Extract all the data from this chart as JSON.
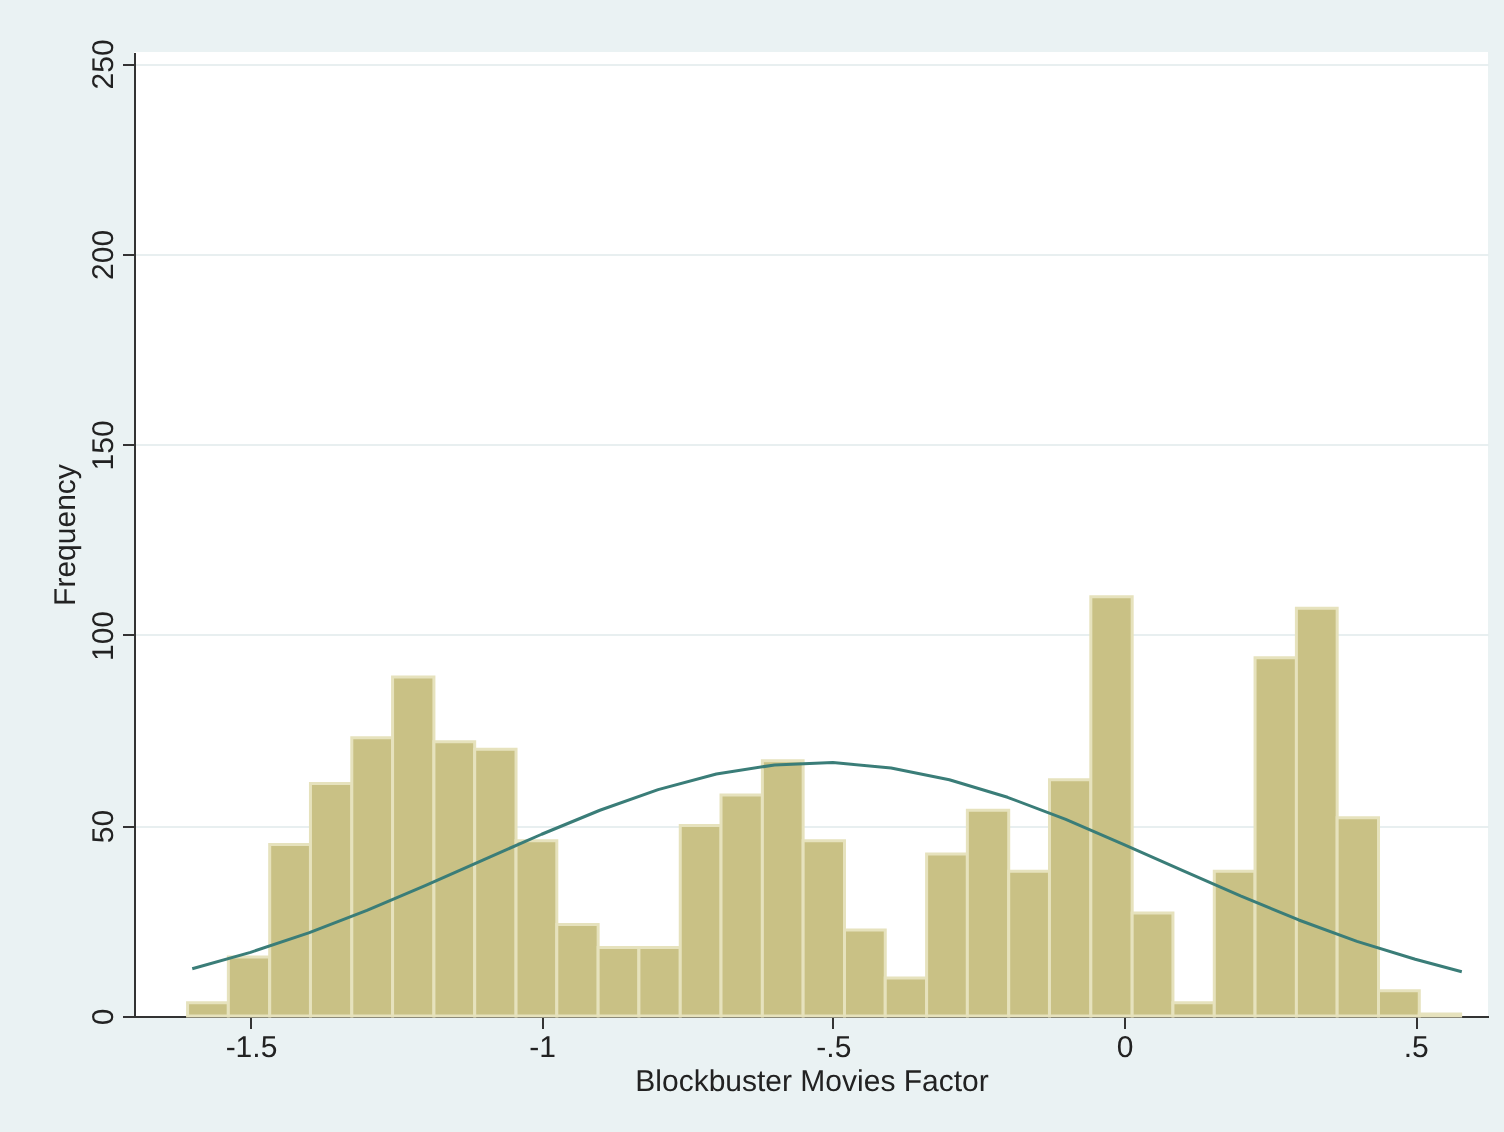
{
  "chart_data": {
    "type": "histogram",
    "xlabel": "Blockbuster Movies Factor",
    "ylabel": "Frequency",
    "bins": [
      -1.608,
      -1.538,
      -1.467,
      -1.397,
      -1.326,
      -1.256,
      -1.185,
      -1.115,
      -1.044,
      -0.974,
      -0.903,
      -0.833,
      -0.762,
      -0.692,
      -0.621,
      -0.551,
      -0.48,
      -0.41,
      -0.339,
      -0.269,
      -0.198,
      -0.128,
      -0.057,
      0.014,
      0.084,
      0.155,
      0.225,
      0.296,
      0.366,
      0.437,
      0.507,
      0.578
    ],
    "values": [
      3.5,
      15.5,
      45,
      61,
      73,
      89,
      72,
      70,
      46,
      24,
      18,
      18,
      50,
      58,
      67,
      46,
      22.6,
      10,
      42.5,
      54,
      38,
      62,
      110,
      27,
      3.5,
      38,
      94,
      107,
      52,
      6.6,
      0.5
    ],
    "color": "#c9c185",
    "series": [
      {
        "type": "line",
        "color": "#3a7d78",
        "x": [
          -1.6,
          -1.5,
          -1.4,
          -1.3,
          -1.2,
          -1.1,
          -1.0,
          -0.9,
          -0.8,
          -0.7,
          -0.6,
          -0.5,
          -0.4,
          -0.3,
          -0.2,
          -0.1,
          0,
          0.1,
          0.2,
          0.3,
          0.4,
          0.5,
          0.58
        ],
        "values": [
          12.4,
          16.7,
          21.8,
          27.7,
          34.2,
          41.0,
          47.7,
          54.0,
          59.4,
          63.5,
          65.9,
          66.5,
          65.1,
          62.0,
          57.4,
          51.6,
          45.0,
          38.2,
          31.5,
          25.2,
          19.6,
          14.9,
          11.6
        ]
      }
    ],
    "xlim": [
      -1.7,
      0.625
    ],
    "ylim": [
      0,
      253
    ],
    "xticks": [
      {
        "value": -1.5,
        "label": "-1.5"
      },
      {
        "value": -1,
        "label": "-1"
      },
      {
        "value": -0.5,
        "label": "-.5"
      },
      0,
      {
        "value": 0.5,
        "label": ".5"
      }
    ],
    "yticks": [
      0,
      50,
      100,
      150,
      200,
      250
    ],
    "grid": "y"
  }
}
